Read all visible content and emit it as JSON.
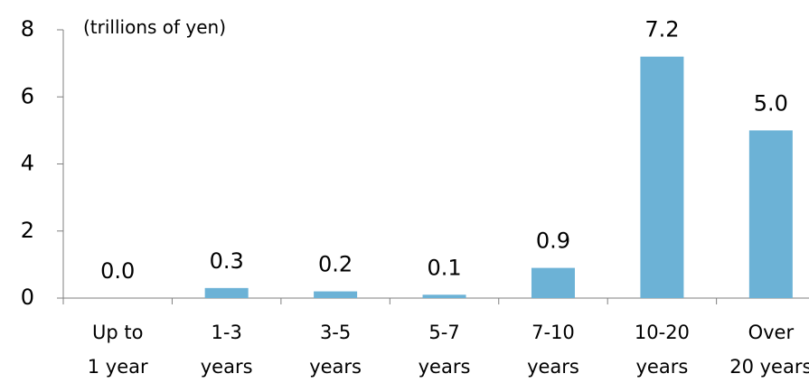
{
  "chart_data": {
    "type": "bar",
    "unit_label": "(trillions of yen)",
    "categories": [
      [
        "Up to",
        "1 year"
      ],
      [
        "1-3",
        "years"
      ],
      [
        "3-5",
        "years"
      ],
      [
        "5-7",
        "years"
      ],
      [
        "7-10",
        "years"
      ],
      [
        "10-20",
        "years"
      ],
      [
        "Over",
        "20 years"
      ]
    ],
    "values": [
      0.0,
      0.3,
      0.2,
      0.1,
      0.9,
      7.2,
      5.0
    ],
    "data_labels": [
      "0.0",
      "0.3",
      "0.2",
      "0.1",
      "0.9",
      "7.2",
      "5.0"
    ],
    "ylim": [
      0,
      8
    ],
    "yticks": [
      0,
      2,
      4,
      6,
      8
    ],
    "grid": false,
    "bar_color": "#6cb2d6"
  }
}
